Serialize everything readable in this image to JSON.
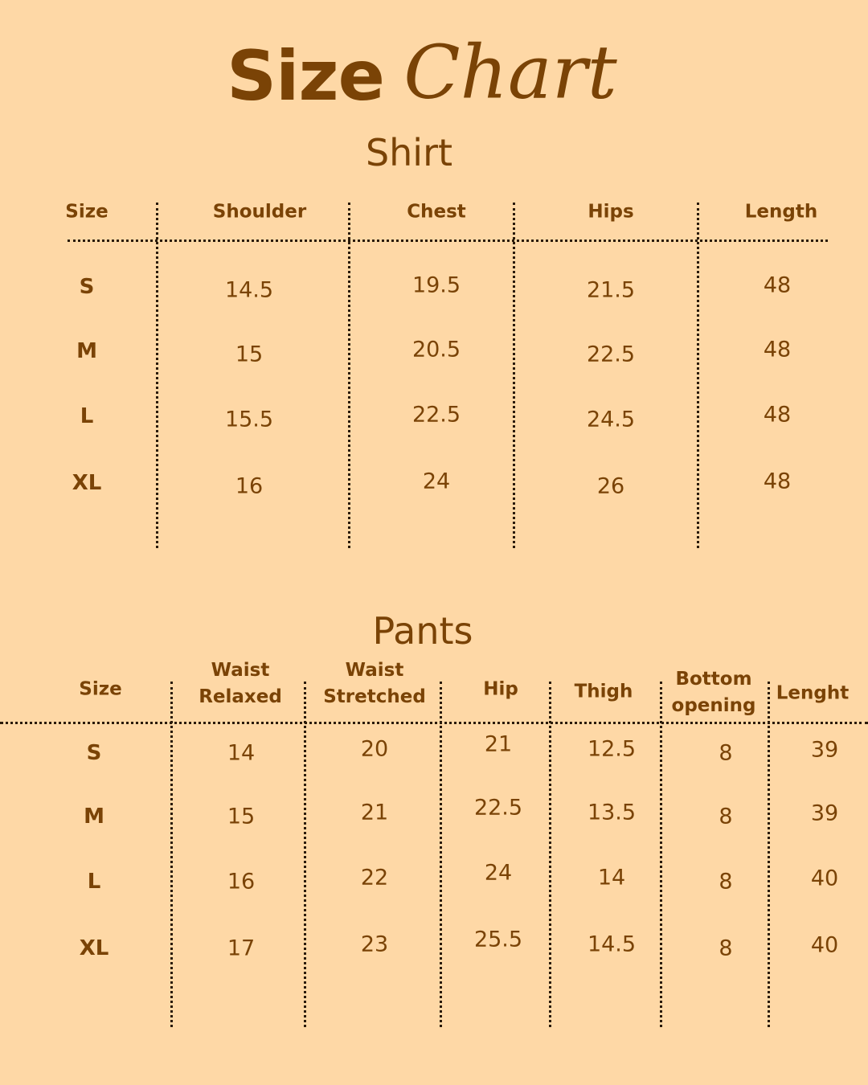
{
  "title": {
    "bold": "Size",
    "script": "Chart"
  },
  "shirt": {
    "title": "Shirt",
    "headers": [
      "Size",
      "Shoulder",
      "Chest",
      "Hips",
      "Length"
    ],
    "rows": [
      [
        "S",
        "14.5",
        "19.5",
        "21.5",
        "48"
      ],
      [
        "M",
        "15",
        "20.5",
        "22.5",
        "48"
      ],
      [
        "L",
        "15.5",
        "22.5",
        "24.5",
        "48"
      ],
      [
        "XL",
        "16",
        "24",
        "26",
        "48"
      ]
    ]
  },
  "pants": {
    "title": "Pants",
    "headers": [
      "Size",
      "Waist\nRelaxed",
      "Waist\nStretched",
      "Hip",
      "Thigh",
      "Bottom\nopening",
      "Lenght"
    ],
    "rows": [
      [
        "S",
        "14",
        "20",
        "21",
        "12.5",
        "8",
        "39"
      ],
      [
        "M",
        "15",
        "21",
        "22.5",
        "13.5",
        "8",
        "39"
      ],
      [
        "L",
        "16",
        "22",
        "24",
        "14",
        "8",
        "40"
      ],
      [
        "XL",
        "17",
        "23",
        "25.5",
        "14.5",
        "8",
        "40"
      ]
    ]
  },
  "colors": {
    "background": "#FED8A6",
    "text": "#7A4306"
  }
}
